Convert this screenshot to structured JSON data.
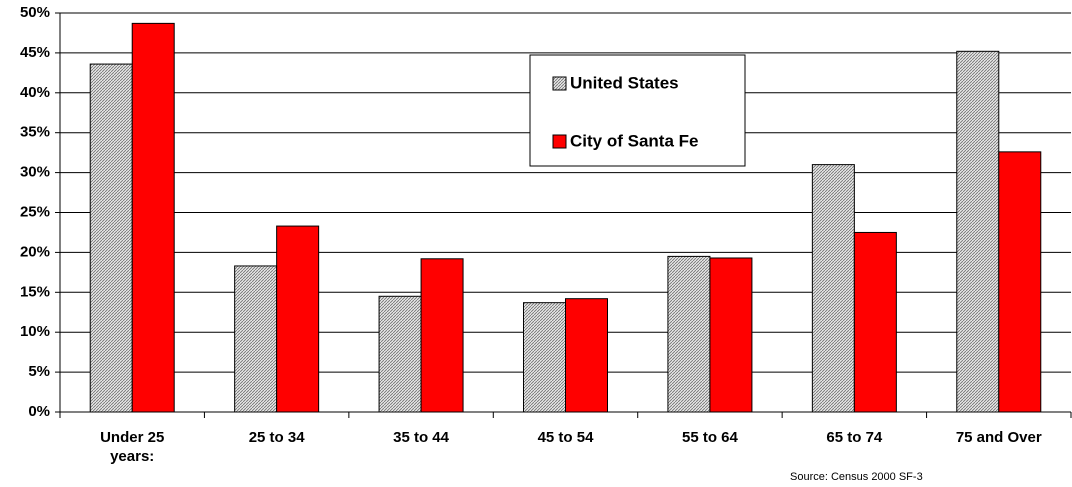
{
  "chart_data": {
    "type": "bar",
    "categories": [
      "Under 25 years:",
      "25 to 34",
      "35 to 44",
      "45 to 54",
      "55 to 64",
      "65 to 74",
      "75 and Over"
    ],
    "series": [
      {
        "name": "United States",
        "color": "#c0c0c0",
        "values": [
          43.6,
          18.3,
          14.5,
          13.7,
          19.5,
          31.0,
          45.2
        ]
      },
      {
        "name": "City of Santa Fe",
        "color": "#ff0000",
        "values": [
          48.7,
          23.3,
          19.2,
          14.2,
          19.3,
          22.5,
          32.6
        ]
      }
    ],
    "ylim": [
      0,
      50
    ],
    "yticks": [
      {
        "value": 0,
        "label": "0%"
      },
      {
        "value": 5,
        "label": "5%"
      },
      {
        "value": 10,
        "label": "10%"
      },
      {
        "value": 15,
        "label": "15%"
      },
      {
        "value": 20,
        "label": "20%"
      },
      {
        "value": 25,
        "label": "25%"
      },
      {
        "value": 30,
        "label": "30%"
      },
      {
        "value": 35,
        "label": "35%"
      },
      {
        "value": 40,
        "label": "40%"
      },
      {
        "value": 45,
        "label": "45%"
      },
      {
        "value": 50,
        "label": "50%"
      }
    ],
    "grid": true,
    "annotations": [
      "Source:  Census 2000 SF-3"
    ]
  }
}
